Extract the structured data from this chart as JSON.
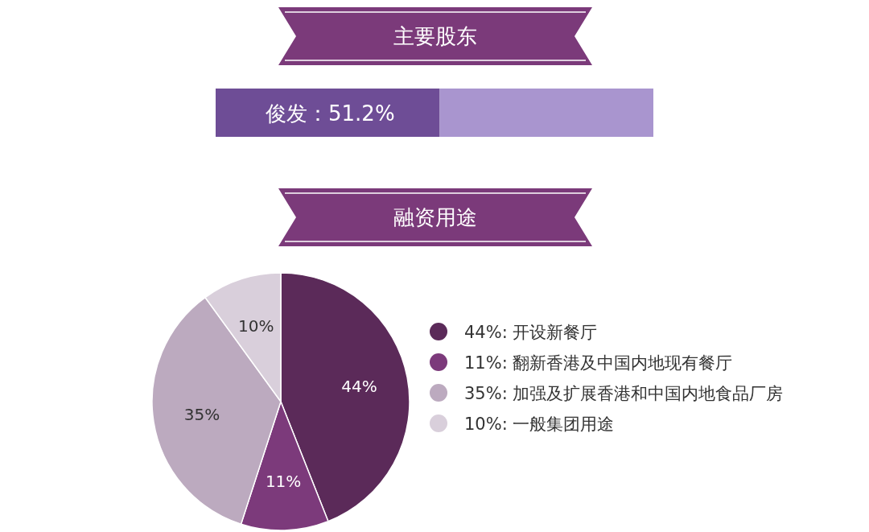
{
  "chart_data": [
    {
      "type": "bar",
      "title": "主要股东",
      "orientation": "horizontal",
      "stacked": true,
      "categories": [
        null
      ],
      "xlim": [
        0,
        100
      ],
      "series": [
        {
          "color": "#6e4d96",
          "values": [
            51.2
          ],
          "value_labels": [
            "俊发：51.2%"
          ]
        },
        {
          "color": "#a995cf",
          "values": [
            48.8
          ]
        }
      ]
    },
    {
      "type": "pie",
      "title": "融资用途",
      "legend": "right",
      "categories": [
        "44%: 开设新餐厅",
        "11%: 翻新香港及中国内地现有餐厅",
        "35%: 加强及扩展香港和中国内地食品厂房",
        "10%: 一般集团用途"
      ],
      "values": [
        44,
        11,
        35,
        10
      ],
      "value_labels": [
        "44%",
        "11%",
        "35%",
        "10%"
      ],
      "colors": [
        "#5b2a59",
        "#7c3a7b",
        "#bcaabf",
        "#d9cfdb"
      ]
    }
  ]
}
